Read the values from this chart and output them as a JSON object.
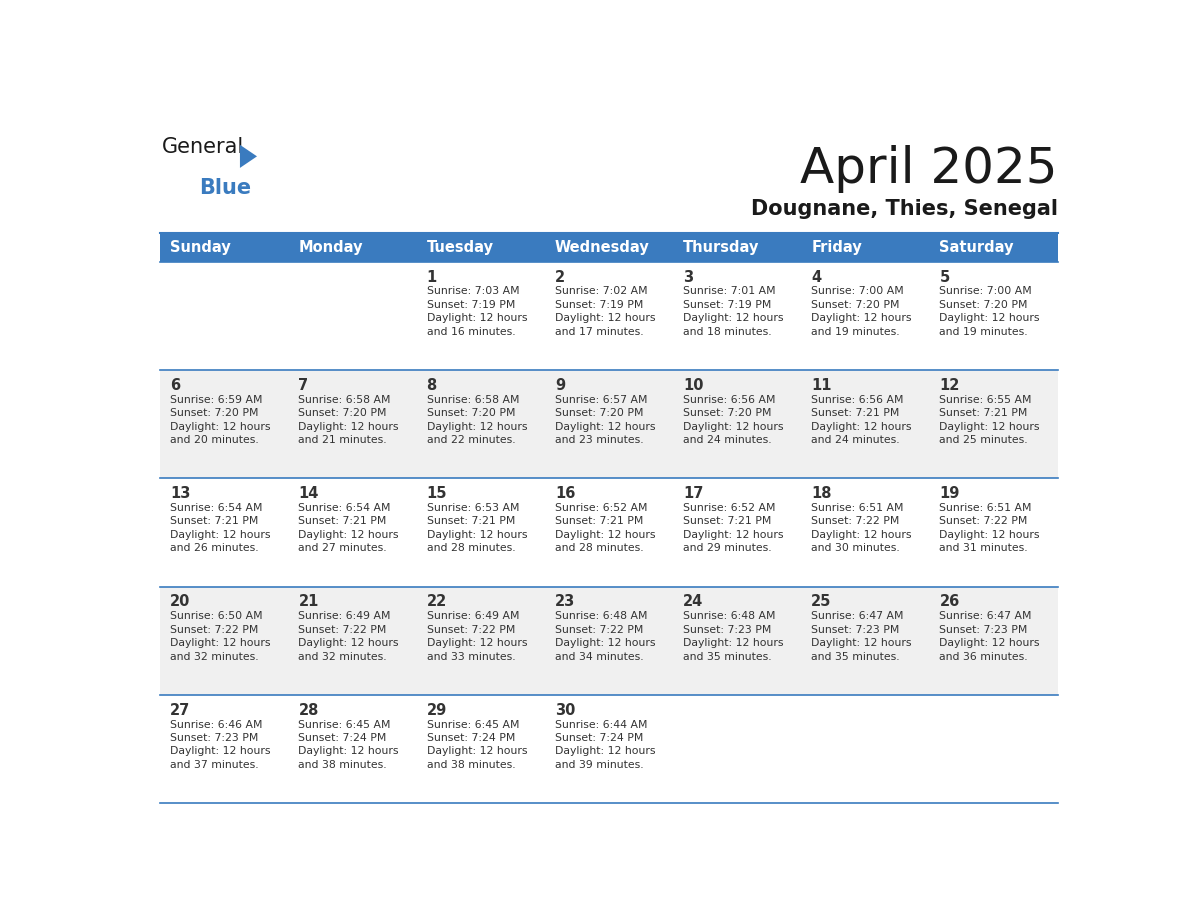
{
  "title": "April 2025",
  "subtitle": "Dougnane, Thies, Senegal",
  "header_bg_color": "#3a7bbf",
  "header_text_color": "#ffffff",
  "cell_bg_color": "#ffffff",
  "alt_cell_bg_color": "#f0f0f0",
  "border_color": "#3a7bbf",
  "title_color": "#1a1a1a",
  "subtitle_color": "#1a1a1a",
  "text_color": "#333333",
  "day_names": [
    "Sunday",
    "Monday",
    "Tuesday",
    "Wednesday",
    "Thursday",
    "Friday",
    "Saturday"
  ],
  "weeks": [
    [
      {
        "day": "",
        "sunrise": "",
        "sunset": "",
        "daylight": ""
      },
      {
        "day": "",
        "sunrise": "",
        "sunset": "",
        "daylight": ""
      },
      {
        "day": "1",
        "sunrise": "Sunrise: 7:03 AM",
        "sunset": "Sunset: 7:19 PM",
        "daylight": "Daylight: 12 hours\nand 16 minutes."
      },
      {
        "day": "2",
        "sunrise": "Sunrise: 7:02 AM",
        "sunset": "Sunset: 7:19 PM",
        "daylight": "Daylight: 12 hours\nand 17 minutes."
      },
      {
        "day": "3",
        "sunrise": "Sunrise: 7:01 AM",
        "sunset": "Sunset: 7:19 PM",
        "daylight": "Daylight: 12 hours\nand 18 minutes."
      },
      {
        "day": "4",
        "sunrise": "Sunrise: 7:00 AM",
        "sunset": "Sunset: 7:20 PM",
        "daylight": "Daylight: 12 hours\nand 19 minutes."
      },
      {
        "day": "5",
        "sunrise": "Sunrise: 7:00 AM",
        "sunset": "Sunset: 7:20 PM",
        "daylight": "Daylight: 12 hours\nand 19 minutes."
      }
    ],
    [
      {
        "day": "6",
        "sunrise": "Sunrise: 6:59 AM",
        "sunset": "Sunset: 7:20 PM",
        "daylight": "Daylight: 12 hours\nand 20 minutes."
      },
      {
        "day": "7",
        "sunrise": "Sunrise: 6:58 AM",
        "sunset": "Sunset: 7:20 PM",
        "daylight": "Daylight: 12 hours\nand 21 minutes."
      },
      {
        "day": "8",
        "sunrise": "Sunrise: 6:58 AM",
        "sunset": "Sunset: 7:20 PM",
        "daylight": "Daylight: 12 hours\nand 22 minutes."
      },
      {
        "day": "9",
        "sunrise": "Sunrise: 6:57 AM",
        "sunset": "Sunset: 7:20 PM",
        "daylight": "Daylight: 12 hours\nand 23 minutes."
      },
      {
        "day": "10",
        "sunrise": "Sunrise: 6:56 AM",
        "sunset": "Sunset: 7:20 PM",
        "daylight": "Daylight: 12 hours\nand 24 minutes."
      },
      {
        "day": "11",
        "sunrise": "Sunrise: 6:56 AM",
        "sunset": "Sunset: 7:21 PM",
        "daylight": "Daylight: 12 hours\nand 24 minutes."
      },
      {
        "day": "12",
        "sunrise": "Sunrise: 6:55 AM",
        "sunset": "Sunset: 7:21 PM",
        "daylight": "Daylight: 12 hours\nand 25 minutes."
      }
    ],
    [
      {
        "day": "13",
        "sunrise": "Sunrise: 6:54 AM",
        "sunset": "Sunset: 7:21 PM",
        "daylight": "Daylight: 12 hours\nand 26 minutes."
      },
      {
        "day": "14",
        "sunrise": "Sunrise: 6:54 AM",
        "sunset": "Sunset: 7:21 PM",
        "daylight": "Daylight: 12 hours\nand 27 minutes."
      },
      {
        "day": "15",
        "sunrise": "Sunrise: 6:53 AM",
        "sunset": "Sunset: 7:21 PM",
        "daylight": "Daylight: 12 hours\nand 28 minutes."
      },
      {
        "day": "16",
        "sunrise": "Sunrise: 6:52 AM",
        "sunset": "Sunset: 7:21 PM",
        "daylight": "Daylight: 12 hours\nand 28 minutes."
      },
      {
        "day": "17",
        "sunrise": "Sunrise: 6:52 AM",
        "sunset": "Sunset: 7:21 PM",
        "daylight": "Daylight: 12 hours\nand 29 minutes."
      },
      {
        "day": "18",
        "sunrise": "Sunrise: 6:51 AM",
        "sunset": "Sunset: 7:22 PM",
        "daylight": "Daylight: 12 hours\nand 30 minutes."
      },
      {
        "day": "19",
        "sunrise": "Sunrise: 6:51 AM",
        "sunset": "Sunset: 7:22 PM",
        "daylight": "Daylight: 12 hours\nand 31 minutes."
      }
    ],
    [
      {
        "day": "20",
        "sunrise": "Sunrise: 6:50 AM",
        "sunset": "Sunset: 7:22 PM",
        "daylight": "Daylight: 12 hours\nand 32 minutes."
      },
      {
        "day": "21",
        "sunrise": "Sunrise: 6:49 AM",
        "sunset": "Sunset: 7:22 PM",
        "daylight": "Daylight: 12 hours\nand 32 minutes."
      },
      {
        "day": "22",
        "sunrise": "Sunrise: 6:49 AM",
        "sunset": "Sunset: 7:22 PM",
        "daylight": "Daylight: 12 hours\nand 33 minutes."
      },
      {
        "day": "23",
        "sunrise": "Sunrise: 6:48 AM",
        "sunset": "Sunset: 7:22 PM",
        "daylight": "Daylight: 12 hours\nand 34 minutes."
      },
      {
        "day": "24",
        "sunrise": "Sunrise: 6:48 AM",
        "sunset": "Sunset: 7:23 PM",
        "daylight": "Daylight: 12 hours\nand 35 minutes."
      },
      {
        "day": "25",
        "sunrise": "Sunrise: 6:47 AM",
        "sunset": "Sunset: 7:23 PM",
        "daylight": "Daylight: 12 hours\nand 35 minutes."
      },
      {
        "day": "26",
        "sunrise": "Sunrise: 6:47 AM",
        "sunset": "Sunset: 7:23 PM",
        "daylight": "Daylight: 12 hours\nand 36 minutes."
      }
    ],
    [
      {
        "day": "27",
        "sunrise": "Sunrise: 6:46 AM",
        "sunset": "Sunset: 7:23 PM",
        "daylight": "Daylight: 12 hours\nand 37 minutes."
      },
      {
        "day": "28",
        "sunrise": "Sunrise: 6:45 AM",
        "sunset": "Sunset: 7:24 PM",
        "daylight": "Daylight: 12 hours\nand 38 minutes."
      },
      {
        "day": "29",
        "sunrise": "Sunrise: 6:45 AM",
        "sunset": "Sunset: 7:24 PM",
        "daylight": "Daylight: 12 hours\nand 38 minutes."
      },
      {
        "day": "30",
        "sunrise": "Sunrise: 6:44 AM",
        "sunset": "Sunset: 7:24 PM",
        "daylight": "Daylight: 12 hours\nand 39 minutes."
      },
      {
        "day": "",
        "sunrise": "",
        "sunset": "",
        "daylight": ""
      },
      {
        "day": "",
        "sunrise": "",
        "sunset": "",
        "daylight": ""
      },
      {
        "day": "",
        "sunrise": "",
        "sunset": "",
        "daylight": ""
      }
    ]
  ],
  "logo_text1": "General",
  "logo_text2": "Blue",
  "logo_text1_color": "#1a1a1a",
  "logo_text2_color": "#3a7bbf",
  "logo_triangle_color": "#3a7bbf",
  "fig_width": 11.88,
  "fig_height": 9.18,
  "dpi": 100
}
